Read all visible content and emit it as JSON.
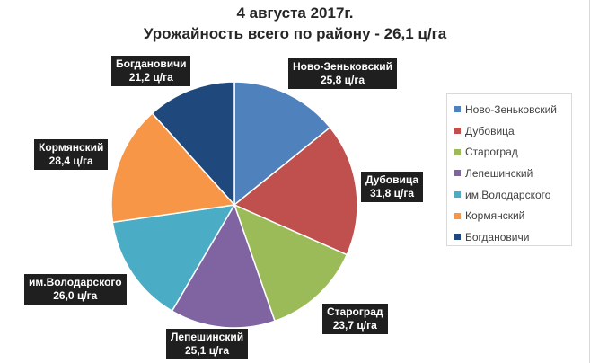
{
  "chart_data": {
    "type": "pie",
    "title": "4 августа 2017г.",
    "subtitle": "Урожайность всего по району -  26,1 ц/га",
    "legend_position": "right",
    "categories": [
      "Ново-Зеньковский",
      "Дубовица",
      "Староград",
      "Лепешинский",
      "им.Володарского",
      "Кормянский",
      "Богдановичи"
    ],
    "values": [
      25.8,
      31.8,
      23.7,
      25.1,
      26.0,
      28.4,
      21.2
    ],
    "data_labels": [
      {
        "name": "Ново-Зеньковский",
        "value": "25,8 ц/га"
      },
      {
        "name": "Дубовица",
        "value": "31,8 ц/га"
      },
      {
        "name": "Староград",
        "value": "23,7 ц/га"
      },
      {
        "name": "Лепешинский",
        "value": "25,1 ц/га"
      },
      {
        "name": "им.Володарского",
        "value": "26,0 ц/га"
      },
      {
        "name": "Кормянский",
        "value": "28,4 ц/га"
      },
      {
        "name": "Богдановичи",
        "value": "21,2 ц/га"
      }
    ],
    "colors": [
      "#4f81bd",
      "#c0504d",
      "#9bbb59",
      "#8064a2",
      "#4bacc6",
      "#f79646",
      "#1f497d"
    ]
  }
}
